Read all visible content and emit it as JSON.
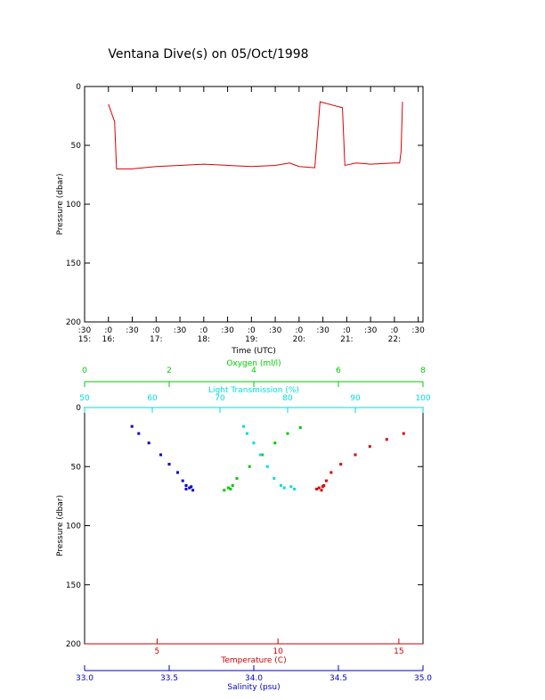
{
  "chart_data": [
    {
      "type": "line",
      "title": "Ventana Dive(s) on 05/Oct/1998",
      "xlabel": "Time (UTC)",
      "ylabel": "Pressure (dbar)",
      "color": "#dd0000",
      "x": [
        16.0,
        16.13,
        16.17,
        16.5,
        17.0,
        17.5,
        18.0,
        18.5,
        19.0,
        19.5,
        19.8,
        20.0,
        20.33,
        20.44,
        20.91,
        20.96,
        21.2,
        21.5,
        22.0,
        22.11,
        22.14,
        22.17
      ],
      "values": [
        15,
        30,
        70,
        70,
        68,
        67,
        66,
        67,
        68,
        67,
        65,
        68,
        69,
        13,
        18,
        67,
        65,
        66,
        65,
        65,
        55,
        13
      ],
      "xlim": [
        15.5,
        22.6
      ],
      "xticks": [
        {
          "value": 15.5,
          "label": ":30\n15:"
        },
        {
          "value": 16,
          "label": ":0\n16:"
        },
        {
          "value": 16.5,
          "label": ":30"
        },
        {
          "value": 17,
          "label": ":0\n17:"
        },
        {
          "value": 17.5,
          "label": ":30"
        },
        {
          "value": 18,
          "label": ":0\n18:"
        },
        {
          "value": 18.5,
          "label": ":30"
        },
        {
          "value": 19,
          "label": ":0\n19:"
        },
        {
          "value": 19.5,
          "label": ":30"
        },
        {
          "value": 20,
          "label": ":0\n20:"
        },
        {
          "value": 20.5,
          "label": ":30"
        },
        {
          "value": 21,
          "label": ":0\n21:"
        },
        {
          "value": 21.5,
          "label": ":30"
        },
        {
          "value": 22,
          "label": ":0\n22:"
        },
        {
          "value": 22.5,
          "label": ":30"
        }
      ],
      "ylim": [
        0,
        200
      ],
      "y_reversed": true,
      "yticks": [
        0,
        50,
        100,
        150,
        200
      ]
    },
    {
      "type": "scatter",
      "ylabel": "Pressure (dbar)",
      "ylim": [
        0,
        200
      ],
      "y_reversed": true,
      "yticks": [
        0,
        50,
        100,
        150,
        200
      ],
      "xaxes": [
        {
          "label": "Oxygen (ml/l)",
          "side": "top",
          "color": "#00cc00",
          "xlim": [
            0,
            8
          ],
          "xticks": [
            0,
            2,
            4,
            6,
            8
          ]
        },
        {
          "label": "Light Transmission (%)",
          "side": "top",
          "color": "#00dddd",
          "xlim": [
            50,
            100
          ],
          "xticks": [
            50,
            60,
            70,
            80,
            90,
            100
          ]
        },
        {
          "label": "Temperature (C)",
          "side": "bottom",
          "color": "#cc0000",
          "xlim": [
            2,
            16
          ],
          "xticks": [
            5,
            10,
            15
          ]
        },
        {
          "label": "Salinity (psu)",
          "side": "bottom",
          "color": "#0000cc",
          "xlim": [
            33,
            35
          ],
          "xticks": [
            {
              "value": 33,
              "label": "33.0"
            },
            {
              "value": 33.5,
              "label": "33.5"
            },
            {
              "value": 34,
              "label": "34.0"
            },
            {
              "value": 34.5,
              "label": "34.5"
            },
            {
              "value": 35,
              "label": "35.0"
            }
          ]
        }
      ],
      "series": [
        {
          "xaxis": 3,
          "color": "#0000cc",
          "x": [
            33.28,
            33.32,
            33.38,
            33.45,
            33.5,
            33.55,
            33.58,
            33.6,
            33.62,
            33.64,
            33.6,
            33.63
          ],
          "y": [
            16,
            22,
            30,
            40,
            48,
            55,
            62,
            66,
            68,
            70,
            69,
            67
          ]
        },
        {
          "xaxis": 2,
          "color": "#dd0000",
          "x": [
            11.7,
            11.8,
            11.9,
            12.0,
            12.2,
            12.6,
            13.2,
            13.8,
            14.5,
            15.2,
            11.6,
            11.85
          ],
          "y": [
            68,
            70,
            66,
            62,
            55,
            48,
            40,
            33,
            27,
            22,
            69,
            67
          ]
        },
        {
          "xaxis": 0,
          "color": "#00cc00",
          "x": [
            3.3,
            3.4,
            3.5,
            3.6,
            3.9,
            4.2,
            4.5,
            4.8,
            5.1,
            3.45
          ],
          "y": [
            70,
            68,
            66,
            60,
            50,
            40,
            30,
            22,
            17,
            69
          ]
        },
        {
          "xaxis": 1,
          "color": "#00dddd",
          "x": [
            79.5,
            80.5,
            81,
            79,
            78,
            77,
            76,
            75,
            74,
            73.5
          ],
          "y": [
            68,
            67,
            69,
            66,
            60,
            50,
            40,
            30,
            22,
            16
          ]
        }
      ]
    }
  ]
}
